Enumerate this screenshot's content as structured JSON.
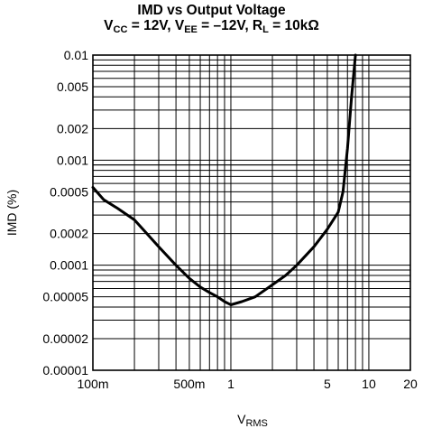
{
  "chart_data": {
    "type": "line",
    "title": {
      "line1": "IMD vs Output Voltage",
      "line2_parts": [
        {
          "t": "V"
        },
        {
          "t": "CC",
          "sub": true
        },
        {
          "t": " = 12V, V"
        },
        {
          "t": "EE",
          "sub": true
        },
        {
          "t": " = –12V, R"
        },
        {
          "t": "L",
          "sub": true
        },
        {
          "t": " = 10kΩ"
        }
      ]
    },
    "xlabel": {
      "main": "V",
      "sub": "RMS"
    },
    "ylabel": "IMD (%)",
    "x_scale": "log",
    "y_scale": "log",
    "xlim": [
      0.1,
      20
    ],
    "ylim": [
      1e-05,
      0.01
    ],
    "grid": true,
    "x_ticks": [
      {
        "value": 0.1,
        "label": "100m"
      },
      {
        "value": 0.5,
        "label": "500m"
      },
      {
        "value": 1,
        "label": "1"
      },
      {
        "value": 5,
        "label": "5"
      },
      {
        "value": 10,
        "label": "10"
      },
      {
        "value": 20,
        "label": "20"
      }
    ],
    "y_ticks": [
      {
        "value": 0.01,
        "label": "0.01"
      },
      {
        "value": 0.005,
        "label": "0.005"
      },
      {
        "value": 0.002,
        "label": "0.002"
      },
      {
        "value": 0.001,
        "label": "0.001"
      },
      {
        "value": 0.0005,
        "label": "0.0005"
      },
      {
        "value": 0.0002,
        "label": "0.0002"
      },
      {
        "value": 0.0001,
        "label": "0.0001"
      },
      {
        "value": 5e-05,
        "label": "0.00005"
      },
      {
        "value": 2e-05,
        "label": "0.00002"
      },
      {
        "value": 1e-05,
        "label": "0.00001"
      }
    ],
    "series": [
      {
        "color": "#000000",
        "x": [
          0.1,
          0.12,
          0.15,
          0.2,
          0.3,
          0.4,
          0.5,
          0.6,
          0.7,
          0.8,
          0.9,
          1.0,
          1.2,
          1.5,
          2.0,
          2.5,
          3.0,
          4.0,
          5.0,
          6.0,
          6.5,
          7.0,
          7.5,
          8.0
        ],
        "y": [
          0.00055,
          0.00042,
          0.00035,
          0.00027,
          0.00015,
          0.0001,
          7.5e-05,
          6.2e-05,
          5.5e-05,
          5e-05,
          4.5e-05,
          4.2e-05,
          4.5e-05,
          5e-05,
          6.5e-05,
          8e-05,
          0.0001,
          0.00015,
          0.00022,
          0.00032,
          0.0005,
          0.0013,
          0.004,
          0.01
        ]
      }
    ]
  }
}
